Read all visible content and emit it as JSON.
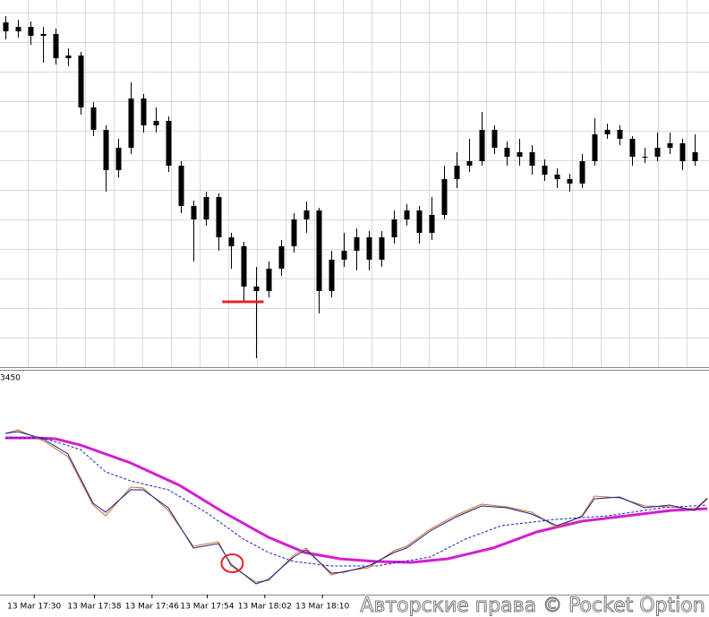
{
  "chart_data": [
    {
      "type": "candlestick",
      "color": "#000000",
      "open": [
        385,
        375,
        380,
        370,
        372,
        345,
        348,
        290,
        265,
        220,
        245,
        300,
        270,
        275,
        225,
        180,
        165,
        190,
        145,
        135,
        90,
        85,
        110,
        135,
        165,
        175,
        85,
        120,
        130,
        145,
        120,
        145,
        165,
        175,
        150,
        170,
        210,
        225,
        230,
        265,
        245,
        235,
        240,
        225,
        215,
        210,
        205,
        230,
        260,
        265,
        255,
        235,
        235,
        245,
        250,
        230
      ],
      "high": [
        392,
        388,
        386,
        380,
        378,
        356,
        352,
        296,
        270,
        255,
        318,
        305,
        290,
        280,
        230,
        186,
        196,
        194,
        150,
        140,
        112,
        118,
        142,
        172,
        185,
        178,
        130,
        150,
        155,
        152,
        152,
        175,
        182,
        180,
        190,
        225,
        240,
        255,
        285,
        270,
        252,
        255,
        248,
        232,
        222,
        216,
        238,
        278,
        272,
        270,
        258,
        245,
        262,
        262,
        255,
        260
      ],
      "low": [
        366,
        368,
        360,
        340,
        338,
        336,
        282,
        258,
        196,
        212,
        238,
        262,
        262,
        218,
        172,
        118,
        158,
        130,
        110,
        73,
        10,
        78,
        102,
        128,
        150,
        60,
        78,
        112,
        108,
        108,
        112,
        138,
        158,
        138,
        142,
        165,
        200,
        218,
        225,
        238,
        225,
        225,
        215,
        208,
        200,
        196,
        200,
        225,
        255,
        248,
        225,
        228,
        230,
        238,
        220,
        225
      ],
      "close": [
        375,
        380,
        370,
        372,
        345,
        348,
        290,
        265,
        220,
        245,
        300,
        270,
        275,
        225,
        180,
        165,
        190,
        145,
        135,
        90,
        85,
        110,
        135,
        165,
        175,
        85,
        120,
        130,
        145,
        120,
        145,
        165,
        175,
        150,
        170,
        210,
        225,
        230,
        265,
        245,
        235,
        240,
        225,
        215,
        210,
        205,
        230,
        260,
        265,
        255,
        235,
        235,
        245,
        250,
        230,
        240
      ],
      "ylim": [
        0,
        410
      ],
      "xlim": [
        -0.43,
        56.14
      ],
      "annotation_line": {
        "value": 73,
        "x": [
          17.3,
          20.6
        ],
        "color": "#e8202a"
      }
    },
    {
      "type": "line",
      "label": "3450",
      "series": [
        {
          "color": "#d21ed2",
          "width": 3,
          "dashed": false,
          "x": [
            0,
            2.4,
            4,
            6,
            10,
            13.9,
            17.4,
            21,
            23.9,
            26.7,
            29.6,
            32.4,
            35.3,
            38.9,
            42.4,
            46,
            49.6,
            53.1,
            56
          ],
          "values": [
            173,
            173,
            172,
            165,
            145,
            120,
            90,
            62,
            45,
            38,
            35,
            34,
            38,
            50,
            68,
            80,
            86,
            92,
            94
          ]
        },
        {
          "color": "#1a1acc",
          "width": 1,
          "dashed": true,
          "x": [
            0,
            3,
            6,
            8,
            10,
            13,
            16,
            19,
            21,
            23,
            26,
            29.6,
            33.9,
            36.7,
            39.6,
            43.9,
            48.1,
            52.4,
            56
          ],
          "values": [
            173,
            173,
            160,
            135,
            125,
            115,
            90,
            60,
            45,
            35,
            30,
            30,
            40,
            60,
            75,
            82,
            86,
            95,
            98
          ]
        },
        {
          "color": "#c87020",
          "width": 1,
          "dashed": false,
          "x": [
            0,
            1,
            3,
            5,
            7,
            8,
            10,
            11,
            13,
            15,
            17,
            18,
            20,
            21,
            23,
            24,
            26,
            27,
            29,
            31,
            32,
            34,
            36,
            38,
            40,
            42,
            44,
            46,
            47,
            49,
            51,
            53,
            55,
            56
          ],
          "values": [
            178,
            182,
            170,
            152,
            98,
            86,
            118,
            117,
            92,
            52,
            57,
            30,
            12,
            14,
            42,
            50,
            20,
            24,
            28,
            47,
            52,
            72,
            87,
            99,
            96,
            90,
            73,
            86,
            108,
            106,
            97,
            96,
            93,
            106
          ]
        },
        {
          "color": "#1a1a90",
          "width": 1,
          "dashed": false,
          "x": [
            0,
            1,
            3,
            5,
            7,
            8,
            10,
            11,
            13,
            15,
            17,
            18,
            20,
            21,
            23,
            24,
            26,
            27,
            29,
            31,
            32,
            34,
            36,
            38,
            40,
            42,
            44,
            46,
            47,
            49,
            51,
            53,
            55,
            56
          ],
          "values": [
            178,
            180,
            172,
            155,
            100,
            90,
            115,
            115,
            95,
            50,
            55,
            32,
            10,
            15,
            40,
            48,
            22,
            23,
            30,
            45,
            50,
            70,
            85,
            97,
            95,
            88,
            75,
            85,
            105,
            107,
            95,
            98,
            92,
            105
          ]
        }
      ],
      "ylim": [
        0,
        248
      ],
      "xlim": [
        -0.43,
        56.14
      ],
      "xticks": [
        {
          "value": 2.3,
          "label": "13 Mar 17:30"
        },
        {
          "value": 7.1,
          "label": "13 Mar 17:38"
        },
        {
          "value": 11.7,
          "label": "13 Mar 17:46"
        },
        {
          "value": 16.1,
          "label": "13 Mar 17:54"
        },
        {
          "value": 20.7,
          "label": "13 Mar 18:02"
        },
        {
          "value": 25.3,
          "label": "13 Mar 18:10"
        }
      ],
      "annotation_circle": {
        "x": 18.1,
        "value": 33,
        "color": "#e8202a"
      },
      "watermark": "Авторские права © Pocket Option"
    }
  ]
}
